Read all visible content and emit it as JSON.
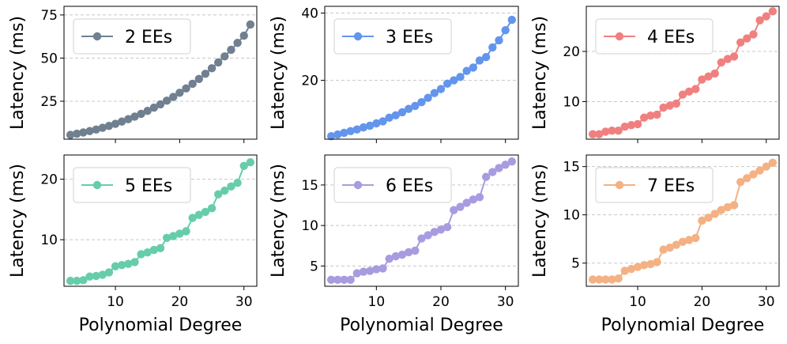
{
  "chart_data": [
    {
      "type": "line",
      "legend": "2 EEs",
      "legend_position": "top-left",
      "color": "#708090",
      "xlabel": "",
      "ylabel": "Latency (ms)",
      "xlim": [
        2,
        32
      ],
      "ylim": [
        3,
        80
      ],
      "yticks": [
        25,
        50,
        75
      ],
      "xticks": [
        10,
        20,
        30
      ],
      "show_xticklabels": false,
      "x": [
        3,
        4,
        5,
        6,
        7,
        8,
        9,
        10,
        11,
        12,
        13,
        14,
        15,
        16,
        17,
        18,
        19,
        20,
        21,
        22,
        23,
        24,
        25,
        26,
        27,
        28,
        29,
        30,
        31
      ],
      "values": [
        5.5,
        6.2,
        6.9,
        7.7,
        8.6,
        9.6,
        10.7,
        11.9,
        13.2,
        14.6,
        16.1,
        17.7,
        19.4,
        21.3,
        23.2,
        25.3,
        27.5,
        29.9,
        32.4,
        35.1,
        37.9,
        40.9,
        44.1,
        47.5,
        51.0,
        54.8,
        58.8,
        63.0,
        69.5
      ]
    },
    {
      "type": "line",
      "legend": "3 EEs",
      "legend_position": "top-left",
      "color": "#6495ED",
      "xlabel": "",
      "ylabel": "Latency (ms)",
      "xlim": [
        2,
        32
      ],
      "ylim": [
        2.5,
        42
      ],
      "yticks": [
        20,
        40
      ],
      "xticks": [
        10,
        20,
        30
      ],
      "show_xticklabels": false,
      "x": [
        3,
        4,
        5,
        6,
        7,
        8,
        9,
        10,
        11,
        12,
        13,
        14,
        15,
        16,
        17,
        18,
        19,
        20,
        21,
        22,
        23,
        24,
        25,
        26,
        27,
        28,
        29,
        30,
        31
      ],
      "values": [
        3.4,
        3.9,
        4.4,
        4.9,
        5.4,
        6.0,
        6.5,
        7.2,
        7.8,
        8.9,
        9.6,
        10.5,
        11.5,
        12.4,
        13.5,
        14.8,
        16.2,
        17.4,
        19.0,
        20.0,
        21.0,
        22.8,
        23.8,
        25.9,
        26.9,
        29.8,
        31.9,
        34.9,
        38.0
      ]
    },
    {
      "type": "line",
      "legend": "4 EEs",
      "legend_position": "top-left",
      "color": "#F08080",
      "xlabel": "",
      "ylabel": "Latency (ms)",
      "xlim": [
        2,
        32
      ],
      "ylim": [
        2.5,
        29
      ],
      "yticks": [
        10,
        20
      ],
      "xticks": [
        10,
        20,
        30
      ],
      "show_xticklabels": false,
      "x": [
        3,
        4,
        5,
        6,
        7,
        8,
        9,
        10,
        11,
        12,
        13,
        14,
        15,
        16,
        17,
        18,
        19,
        20,
        21,
        22,
        23,
        24,
        25,
        26,
        27,
        28,
        29,
        30,
        31
      ],
      "values": [
        3.5,
        3.5,
        4.0,
        4.2,
        4.2,
        5.0,
        5.3,
        5.5,
        6.8,
        7.2,
        7.4,
        8.8,
        9.2,
        9.6,
        11.4,
        12.0,
        12.5,
        14.4,
        15.0,
        15.6,
        17.8,
        18.5,
        19.0,
        21.8,
        22.6,
        23.4,
        26.2,
        27.0,
        28.0
      ]
    },
    {
      "type": "line",
      "legend": "5 EEs",
      "legend_position": "top-left",
      "color": "#66CDAA",
      "xlabel": "Polynomial Degree",
      "ylabel": "Latency (ms)",
      "xlim": [
        2,
        32
      ],
      "ylim": [
        2.3,
        24
      ],
      "yticks": [
        10,
        20
      ],
      "xticks": [
        10,
        20,
        30
      ],
      "show_xticklabels": true,
      "x": [
        3,
        4,
        5,
        6,
        7,
        8,
        9,
        10,
        11,
        12,
        13,
        14,
        15,
        16,
        17,
        18,
        19,
        20,
        21,
        22,
        23,
        24,
        25,
        26,
        27,
        28,
        29,
        30,
        31
      ],
      "values": [
        3.2,
        3.2,
        3.3,
        3.9,
        4.0,
        4.2,
        4.6,
        5.6,
        5.8,
        6.0,
        6.3,
        7.6,
        7.9,
        8.3,
        8.6,
        10.3,
        10.6,
        11.0,
        11.4,
        13.6,
        14.1,
        14.6,
        15.2,
        17.5,
        18.1,
        18.8,
        19.4,
        22.2,
        22.8
      ]
    },
    {
      "type": "line",
      "legend": "6 EEs",
      "legend_position": "top-left",
      "color": "#A99BE0",
      "xlabel": "Polynomial Degree",
      "ylabel": "Latency (ms)",
      "xlim": [
        2,
        32
      ],
      "ylim": [
        2.5,
        18.7
      ],
      "yticks": [
        5,
        10,
        15
      ],
      "xticks": [
        10,
        20,
        30
      ],
      "show_xticklabels": true,
      "x": [
        3,
        4,
        5,
        6,
        7,
        8,
        9,
        10,
        11,
        12,
        13,
        14,
        15,
        16,
        17,
        18,
        19,
        20,
        21,
        22,
        23,
        24,
        25,
        26,
        27,
        28,
        29,
        30,
        31
      ],
      "values": [
        3.3,
        3.3,
        3.3,
        3.3,
        4.1,
        4.3,
        4.4,
        4.6,
        4.7,
        5.9,
        6.2,
        6.4,
        6.7,
        6.9,
        8.4,
        8.8,
        9.2,
        9.5,
        9.8,
        11.9,
        12.3,
        12.8,
        13.2,
        13.5,
        16.0,
        16.6,
        17.1,
        17.5,
        17.9
      ]
    },
    {
      "type": "line",
      "legend": "7 EEs",
      "legend_position": "top-left",
      "color": "#F4B183",
      "xlabel": "Polynomial Degree",
      "ylabel": "Latency (ms)",
      "xlim": [
        2,
        32
      ],
      "ylim": [
        2.6,
        16.2
      ],
      "yticks": [
        5,
        10,
        15
      ],
      "xticks": [
        10,
        20,
        30
      ],
      "show_xticklabels": true,
      "x": [
        3,
        4,
        5,
        6,
        7,
        8,
        9,
        10,
        11,
        12,
        13,
        14,
        15,
        16,
        17,
        18,
        19,
        20,
        21,
        22,
        23,
        24,
        25,
        26,
        27,
        28,
        29,
        30,
        31
      ],
      "values": [
        3.3,
        3.3,
        3.3,
        3.3,
        3.4,
        4.2,
        4.4,
        4.6,
        4.8,
        4.9,
        5.1,
        6.4,
        6.6,
        6.9,
        7.2,
        7.4,
        7.6,
        9.4,
        9.7,
        10.1,
        10.5,
        10.8,
        11.0,
        13.4,
        13.8,
        14.2,
        14.6,
        15.0,
        15.4
      ]
    }
  ]
}
